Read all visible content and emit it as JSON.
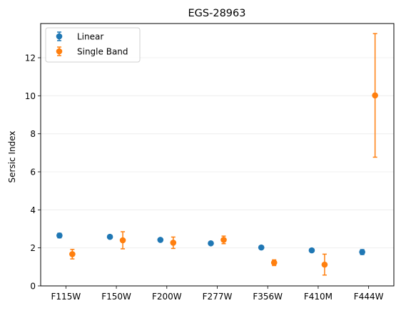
{
  "chart_data": {
    "type": "scatter",
    "title": "EGS-28963",
    "xlabel": "",
    "ylabel": "Sersic Index",
    "categories": [
      "F115W",
      "F150W",
      "F200W",
      "F277W",
      "F356W",
      "F410M",
      "F444W"
    ],
    "ylim": [
      0,
      13.8
    ],
    "yticks": [
      0,
      2,
      4,
      6,
      8,
      10,
      12
    ],
    "grid": "horizontal, faint",
    "legend_position": "top-left",
    "series": [
      {
        "name": "Linear",
        "color": "#1f77b4",
        "values": [
          2.65,
          2.58,
          2.42,
          2.24,
          2.02,
          1.87,
          1.78
        ],
        "err": [
          0.12,
          0.08,
          0.08,
          0.06,
          0.06,
          0.06,
          0.13
        ]
      },
      {
        "name": "Single Band",
        "color": "#ff7f0e",
        "values": [
          1.67,
          2.4,
          2.27,
          2.42,
          1.22,
          1.12,
          10.02
        ],
        "err_low": [
          0.25,
          0.45,
          0.3,
          0.2,
          0.15,
          0.55,
          3.25
        ],
        "err_high": [
          0.25,
          0.45,
          0.3,
          0.2,
          0.15,
          0.55,
          3.25
        ]
      }
    ]
  }
}
